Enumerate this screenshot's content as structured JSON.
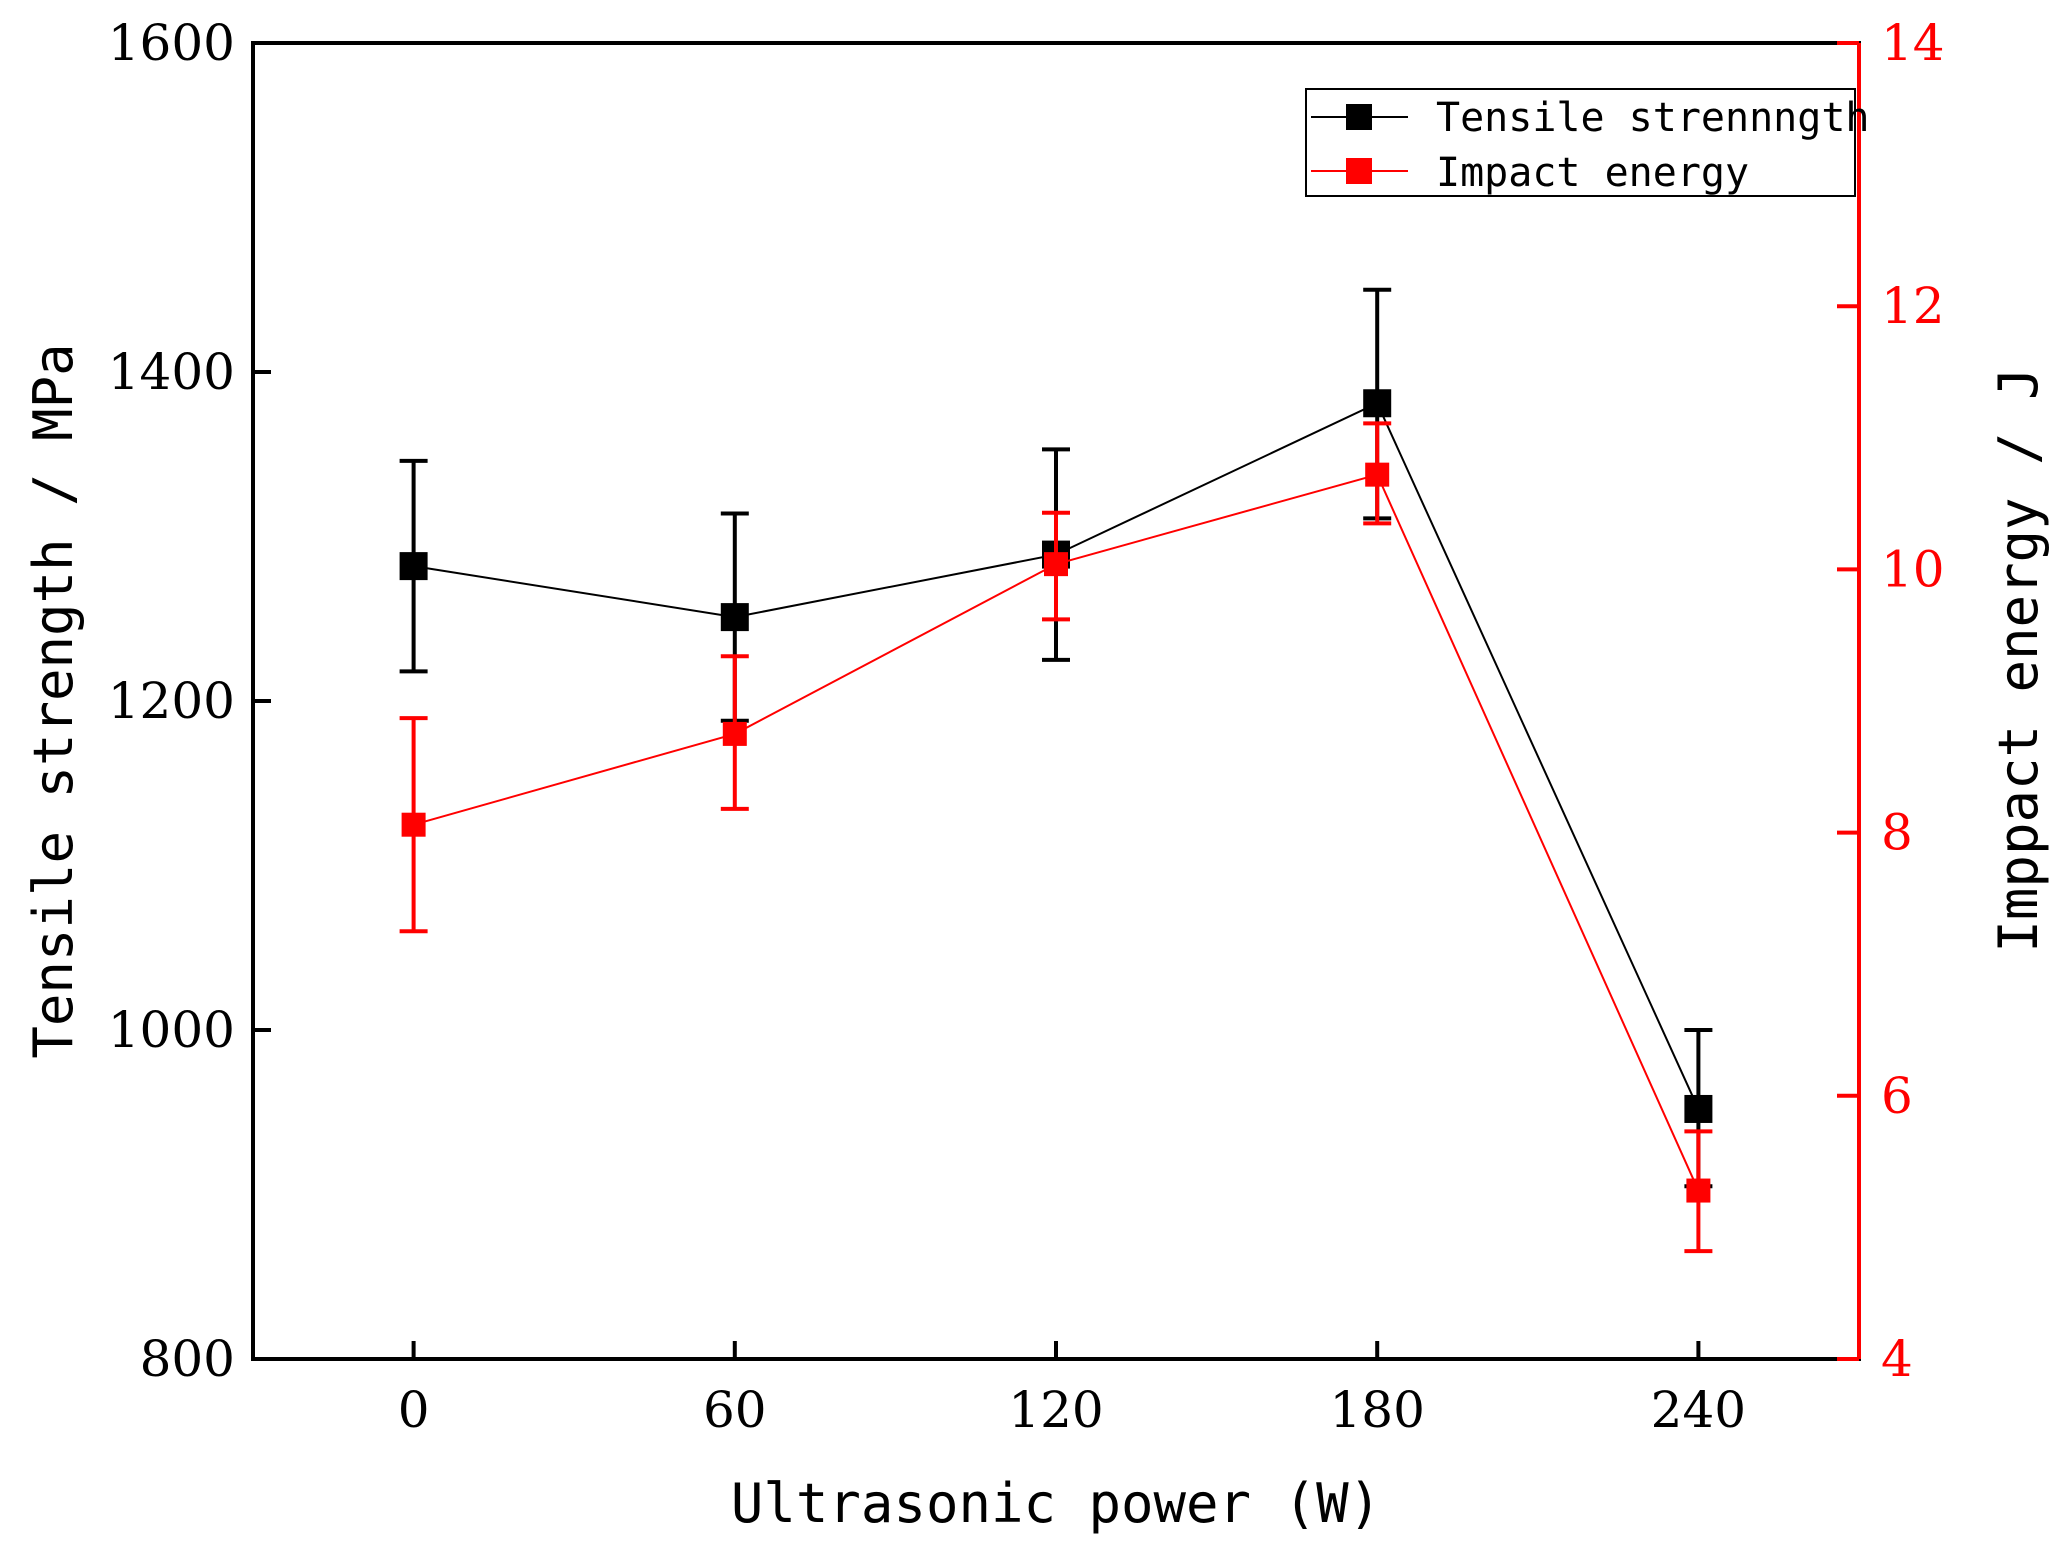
{
  "chart_data": {
    "type": "line",
    "x": [
      0,
      60,
      120,
      180,
      240
    ],
    "xticks": [
      "0",
      "60",
      "120",
      "180",
      "240"
    ],
    "xlim": [
      -30,
      270
    ],
    "xlabel": "Ultrasonic power (W)",
    "ylabel_left": "Tensile strength / MPa",
    "ylabel_right": "Imppact energy / J",
    "ylim_left": [
      800,
      1600
    ],
    "yticks_left": [
      "800",
      "1000",
      "1200",
      "1400",
      "1600"
    ],
    "ylim_right": [
      4,
      14
    ],
    "yticks_right": [
      "4",
      "6",
      "8",
      "10",
      "12",
      "14"
    ],
    "grid": false,
    "legend_position": "top-right",
    "series": [
      {
        "name": "Tensile strennngth",
        "axis": "left",
        "color": "#000000",
        "values": [
          1282,
          1251,
          1289,
          1381,
          952
        ],
        "err_low": [
          1218,
          1188,
          1225,
          1311,
          905
        ],
        "err_high": [
          1346,
          1314,
          1353,
          1450,
          1000
        ]
      },
      {
        "name": "Impact energy",
        "axis": "right",
        "color": "#ff0000",
        "values": [
          8.06,
          8.75,
          10.04,
          10.72,
          5.28
        ],
        "err_low": [
          7.25,
          8.18,
          9.62,
          10.35,
          4.82
        ],
        "err_high": [
          8.87,
          9.34,
          10.43,
          11.11,
          5.73
        ]
      }
    ]
  }
}
